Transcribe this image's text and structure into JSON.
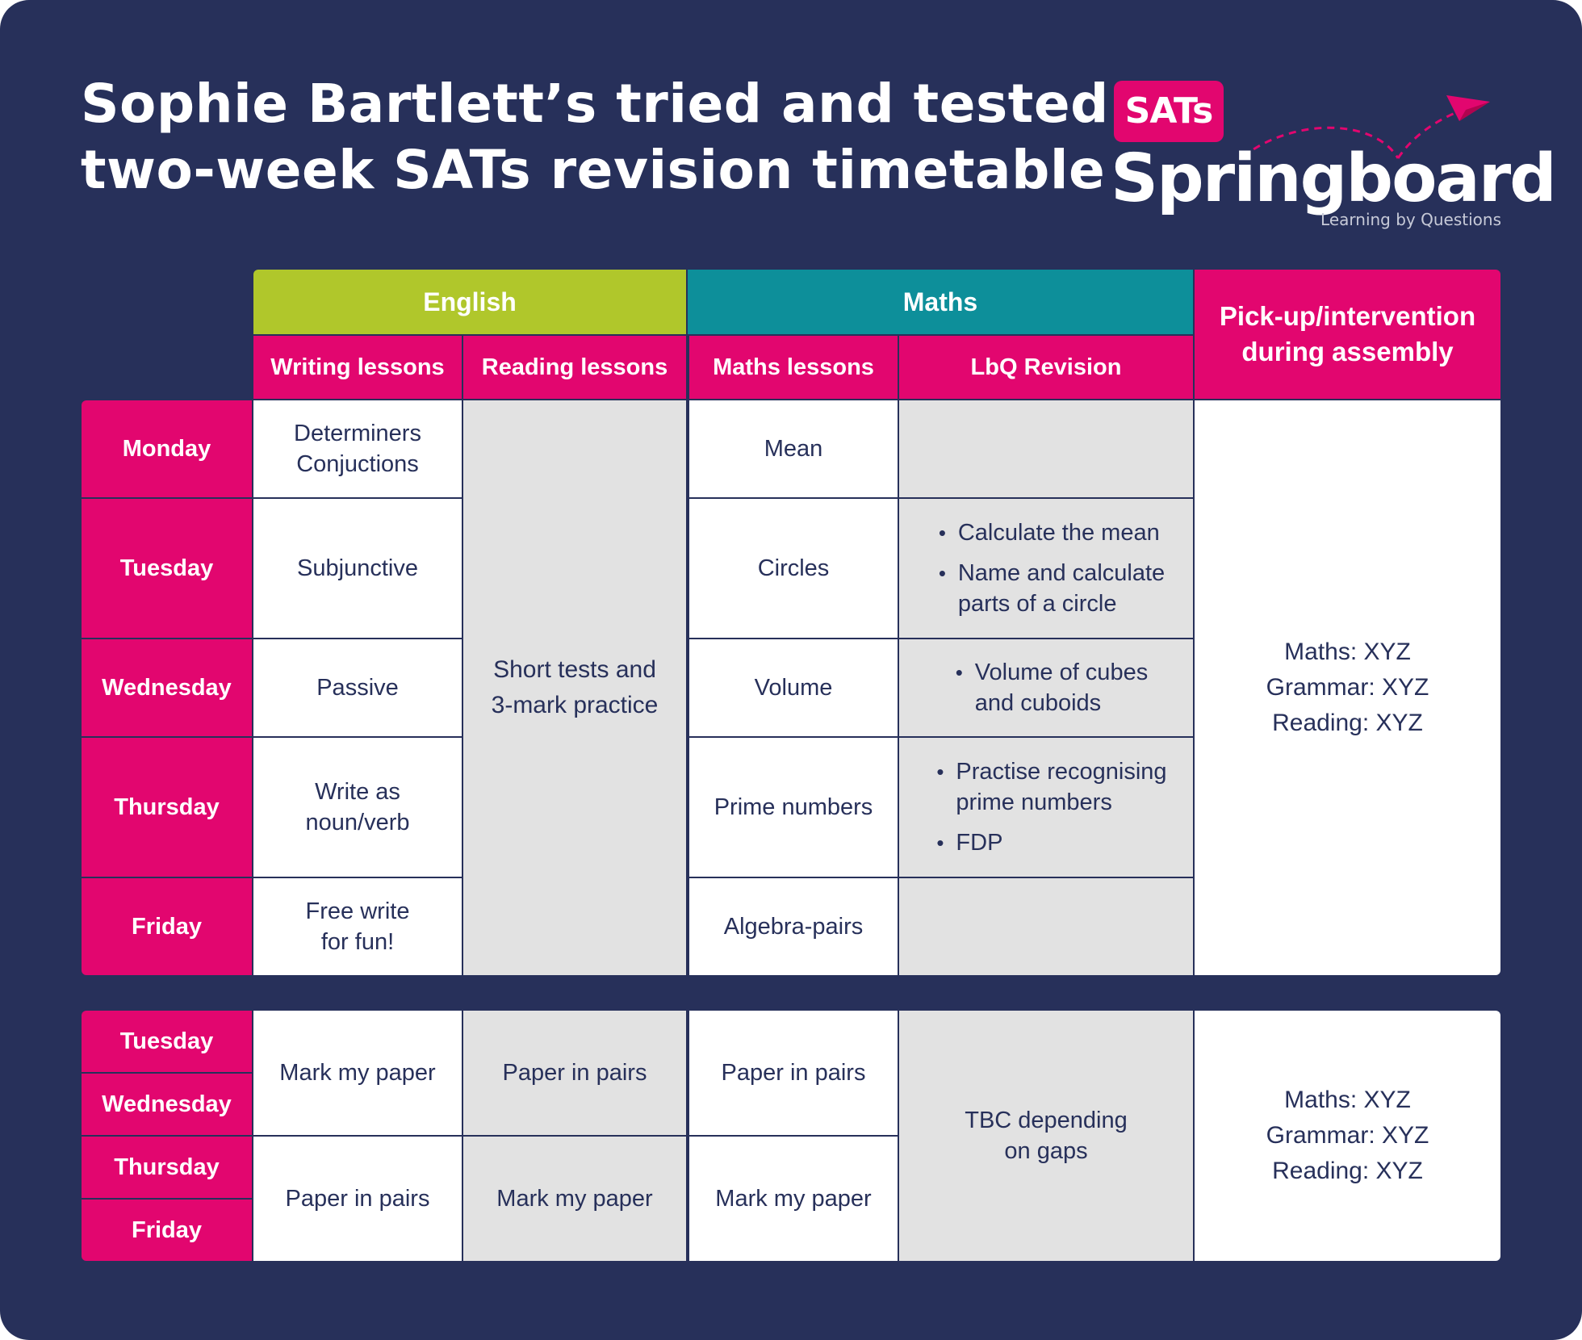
{
  "title": {
    "line1": "Sophie Bartlett’s tried and tested",
    "line2": "two-week SATs revision timetable"
  },
  "logo": {
    "badge": "SATs",
    "word": "Springboard",
    "tagline": "Learning by Questions",
    "accent": "#e2066f"
  },
  "colors": {
    "background": "#27305a",
    "pink": "#e2066f",
    "english_green": "#b0c72b",
    "maths_teal": "#0d8f9a",
    "grey_cell": "#e2e2e2"
  },
  "header": {
    "english": "English",
    "maths": "Maths",
    "pickup": [
      "Pick-up/intervention",
      "during assembly"
    ],
    "writing": "Writing lessons",
    "reading": "Reading lessons",
    "maths_lessons": "Maths lessons",
    "lbq": "LbQ Revision"
  },
  "week1": {
    "days": [
      "Monday",
      "Tuesday",
      "Wednesday",
      "Thursday",
      "Friday"
    ],
    "writing": [
      [
        "Determiners",
        "Conjuctions"
      ],
      [
        "Subjunctive"
      ],
      [
        "Passive"
      ],
      [
        "Write as",
        "noun/verb"
      ],
      [
        "Free write",
        "for fun!"
      ]
    ],
    "reading": [
      "Short tests and",
      "3-mark practice"
    ],
    "maths": [
      "Mean",
      "Circles",
      "Volume",
      "Prime numbers",
      "Algebra-pairs"
    ],
    "lbq": [
      [],
      [
        [
          "Calculate the mean"
        ],
        [
          "Name and calculate",
          "parts of a circle"
        ]
      ],
      [
        [
          "Volume of cubes",
          "and cuboids"
        ]
      ],
      [
        [
          "Practise recognising",
          "prime numbers"
        ],
        [
          "FDP"
        ]
      ],
      []
    ],
    "pickup": [
      "Maths: XYZ",
      "Grammar: XYZ",
      "Reading: XYZ"
    ]
  },
  "week2": {
    "days": [
      "Tuesday",
      "Wednesday",
      "Thursday",
      "Friday"
    ],
    "writing": [
      "Mark my paper",
      "Paper in pairs"
    ],
    "reading": [
      "Paper in pairs",
      "Mark my paper"
    ],
    "maths": [
      "Paper in pairs",
      "Mark my paper"
    ],
    "lbq": [
      "TBC depending",
      "on gaps"
    ],
    "pickup": [
      "Maths: XYZ",
      "Grammar: XYZ",
      "Reading: XYZ"
    ]
  }
}
